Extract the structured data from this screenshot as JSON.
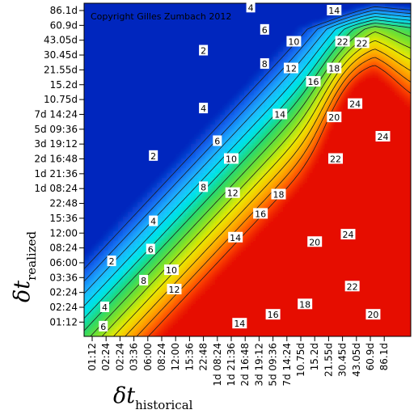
{
  "chart_data": {
    "type": "heatmap",
    "title": "",
    "copyright": "Copyright Gilles Zumbach 2012",
    "xlabel_main": "δt",
    "xlabel_sub": "historical",
    "ylabel_main": "δt",
    "ylabel_sub": "realized",
    "x_ticks": [
      "01:12",
      "02:24",
      "02:24",
      "03:36",
      "06:00",
      "08:24",
      "12:00",
      "15:36",
      "22:48",
      "1d 08:24",
      "1d 21:36",
      "2d 16:48",
      "3d 19:12",
      "5d 09:36",
      "7d 14:24",
      "10.75d",
      "15.2d",
      "21.55d",
      "30.45d",
      "43.05d",
      "60.9d",
      "86.1d"
    ],
    "y_ticks": [
      "86.1d",
      "60.9d",
      "43.05d",
      "30.45d",
      "21.55d",
      "15.2d",
      "10.75d",
      "7d 14:24",
      "5d 09:36",
      "3d 19:12",
      "2d 16:48",
      "1d 21:36",
      "1d 08:24",
      "22:48",
      "15:36",
      "12:00",
      "08:24",
      "06:00",
      "03:36",
      "02:24",
      "02:24",
      "01:12"
    ],
    "contour_levels": [
      2,
      4,
      6,
      8,
      10,
      12,
      14,
      16,
      18,
      20,
      22,
      24
    ],
    "contour_labels": [
      {
        "value": "14",
        "xi": 17.4,
        "yi": 0.0
      },
      {
        "value": "4",
        "xi": 11.4,
        "yi": -0.2
      },
      {
        "value": "6",
        "xi": 12.4,
        "yi": 1.3
      },
      {
        "value": "10",
        "xi": 14.5,
        "yi": 2.1
      },
      {
        "value": "22",
        "xi": 18.0,
        "yi": 2.1
      },
      {
        "value": "22",
        "xi": 19.4,
        "yi": 2.2
      },
      {
        "value": "2",
        "xi": 8.0,
        "yi": 2.7
      },
      {
        "value": "8",
        "xi": 12.4,
        "yi": 3.6
      },
      {
        "value": "12",
        "xi": 14.3,
        "yi": 3.9
      },
      {
        "value": "16",
        "xi": 15.9,
        "yi": 4.8
      },
      {
        "value": "18",
        "xi": 17.4,
        "yi": 3.9
      },
      {
        "value": "24",
        "xi": 18.9,
        "yi": 6.3
      },
      {
        "value": "4",
        "xi": 8.0,
        "yi": 6.6
      },
      {
        "value": "14",
        "xi": 13.5,
        "yi": 7.0
      },
      {
        "value": "20",
        "xi": 17.4,
        "yi": 7.2
      },
      {
        "value": "24",
        "xi": 20.9,
        "yi": 8.5
      },
      {
        "value": "6",
        "xi": 9.0,
        "yi": 8.8
      },
      {
        "value": "2",
        "xi": 4.4,
        "yi": 9.8
      },
      {
        "value": "10",
        "xi": 10.0,
        "yi": 10.0
      },
      {
        "value": "22",
        "xi": 17.5,
        "yi": 10.0
      },
      {
        "value": "8",
        "xi": 8.0,
        "yi": 11.9
      },
      {
        "value": "12",
        "xi": 10.1,
        "yi": 12.3
      },
      {
        "value": "18",
        "xi": 13.4,
        "yi": 12.4
      },
      {
        "value": "16",
        "xi": 12.1,
        "yi": 13.7
      },
      {
        "value": "4",
        "xi": 4.4,
        "yi": 14.2
      },
      {
        "value": "24",
        "xi": 18.4,
        "yi": 15.1
      },
      {
        "value": "14",
        "xi": 10.3,
        "yi": 15.3
      },
      {
        "value": "6",
        "xi": 4.2,
        "yi": 16.1
      },
      {
        "value": "20",
        "xi": 16.0,
        "yi": 15.6
      },
      {
        "value": "2",
        "xi": 1.4,
        "yi": 16.9
      },
      {
        "value": "10",
        "xi": 5.7,
        "yi": 17.5
      },
      {
        "value": "8",
        "xi": 3.7,
        "yi": 18.2
      },
      {
        "value": "12",
        "xi": 5.9,
        "yi": 18.8
      },
      {
        "value": "22",
        "xi": 18.7,
        "yi": 18.6
      },
      {
        "value": "18",
        "xi": 15.3,
        "yi": 19.8
      },
      {
        "value": "4",
        "xi": 0.9,
        "yi": 20.0
      },
      {
        "value": "16",
        "xi": 13.0,
        "yi": 20.5
      },
      {
        "value": "20",
        "xi": 20.2,
        "yi": 20.5
      },
      {
        "value": "14",
        "xi": 10.6,
        "yi": 21.1
      },
      {
        "value": "6",
        "xi": 0.8,
        "yi": 21.3
      }
    ]
  }
}
